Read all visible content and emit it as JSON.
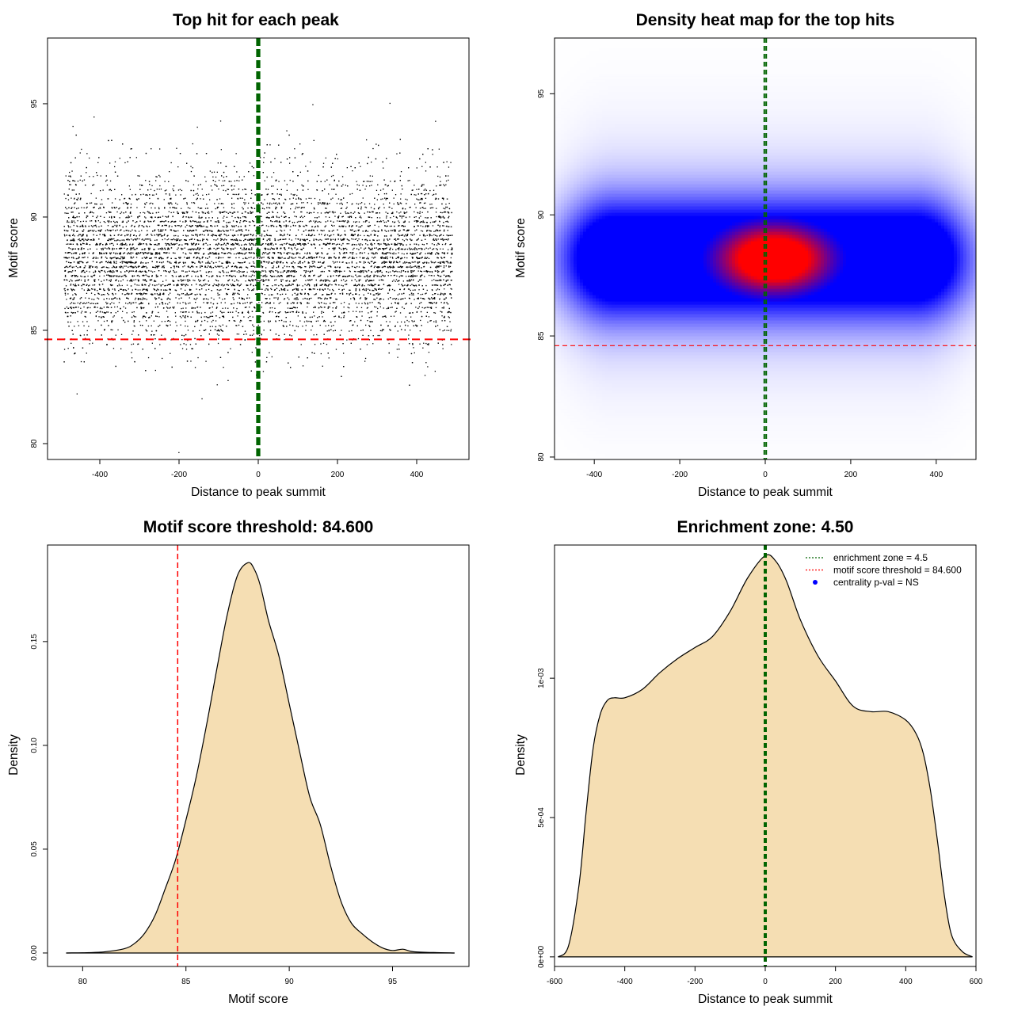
{
  "chart_data": [
    {
      "id": "scatter",
      "type": "scatter",
      "title": "Top hit for each peak",
      "xlabel": "Distance to peak summit",
      "ylabel": "Motif score",
      "xlim": [
        -532,
        532
      ],
      "ylim": [
        79.3,
        97.9
      ],
      "xticks": [
        "-400",
        "-200",
        "0",
        "200",
        "400"
      ],
      "yticks": [
        "80",
        "85",
        "90",
        "95"
      ],
      "x_range_of_points": [
        -490,
        490
      ],
      "y_center": 88.2,
      "y_spread": 1.8,
      "n_points": 9000,
      "hline_threshold": 84.6,
      "vlines_enrichment": [
        -2.25,
        2.25
      ],
      "colors": {
        "points": "#000000",
        "threshold": "#ff0000",
        "enrichment": "#006400"
      }
    },
    {
      "id": "heatmap",
      "type": "heatmap",
      "title": "Density heat map for the top hits",
      "xlabel": "Distance to peak summit",
      "ylabel": "Motif score",
      "xlim": [
        -493,
        493
      ],
      "ylim": [
        79.9,
        97.3
      ],
      "xticks": [
        "-400",
        "-200",
        "0",
        "200",
        "400"
      ],
      "yticks": [
        "80",
        "85",
        "90",
        "95"
      ],
      "density_peak": {
        "x": 20,
        "y": 88.2
      },
      "hline_threshold": 84.6,
      "vlines_enrichment": [
        -2.25,
        2.25
      ],
      "colors": {
        "low": "#ffffff",
        "mid": "#0000ff",
        "high": "#ff0000",
        "threshold": "#ff0000",
        "enrichment": "#006400"
      }
    },
    {
      "id": "score-density",
      "type": "area",
      "title": "Motif score threshold: 84.600",
      "xlabel": "Motif score",
      "ylabel": "Density",
      "xlim": [
        78.3,
        98.7
      ],
      "ylim": [
        -0.0065,
        0.1965
      ],
      "xticks": [
        "80",
        "85",
        "90",
        "95"
      ],
      "yticks": [
        "0.00",
        "0.05",
        "0.10",
        "0.15"
      ],
      "x": [
        79.2,
        80,
        81,
        82,
        82.5,
        83,
        83.5,
        84,
        84.5,
        85,
        85.5,
        86,
        86.5,
        87,
        87.5,
        88,
        88.3,
        88.6,
        89,
        89.5,
        90,
        90.5,
        91,
        91.5,
        92,
        92.5,
        93,
        93.5,
        94,
        94.5,
        95,
        95.5,
        96,
        97,
        98
      ],
      "y": [
        0,
        0.0001,
        0.0005,
        0.002,
        0.0045,
        0.0095,
        0.018,
        0.031,
        0.045,
        0.064,
        0.085,
        0.11,
        0.137,
        0.163,
        0.182,
        0.188,
        0.185,
        0.177,
        0.16,
        0.143,
        0.12,
        0.097,
        0.075,
        0.062,
        0.042,
        0.025,
        0.0145,
        0.0095,
        0.0055,
        0.0025,
        0.0012,
        0.0018,
        0.0006,
        0.0002,
        0
      ],
      "vline_threshold": 84.6,
      "colors": {
        "fill": "#f5deb3",
        "line": "#000000",
        "threshold": "#ff0000"
      }
    },
    {
      "id": "distance-density",
      "type": "area",
      "title": "Enrichment zone: 4.50",
      "xlabel": "Distance to peak summit",
      "ylabel": "Density",
      "xlim": [
        -600,
        600
      ],
      "ylim": [
        -3.45e-05,
        0.001478
      ],
      "xticks": [
        "-600",
        "-400",
        "-200",
        "0",
        "200",
        "400",
        "600"
      ],
      "yticks": [
        "0e+00",
        "5e-04",
        "1e-03"
      ],
      "x": [
        -590,
        -560,
        -530,
        -510,
        -490,
        -470,
        -450,
        -430,
        -400,
        -350,
        -300,
        -250,
        -200,
        -150,
        -100,
        -50,
        0,
        30,
        60,
        100,
        150,
        200,
        250,
        300,
        350,
        400,
        430,
        450,
        470,
        490,
        510,
        530,
        560,
        590
      ],
      "y": [
        0,
        4e-05,
        0.00026,
        0.00052,
        0.00075,
        0.00087,
        0.00092,
        0.00093,
        0.00093,
        0.00096,
        0.00102,
        0.00107,
        0.00111,
        0.00115,
        0.00124,
        0.00136,
        0.00144,
        0.00142,
        0.00135,
        0.00121,
        0.00108,
        0.00099,
        0.0009,
        0.00088,
        0.00088,
        0.00085,
        0.0008,
        0.00073,
        0.0006,
        0.00042,
        0.00022,
        8e-05,
        2e-05,
        0
      ],
      "vlines_enrichment": [
        -2.25,
        2.25
      ],
      "legend_position": "top-right",
      "legend": [
        {
          "label": "enrichment zone = 4.5",
          "style": "dotted-line",
          "color": "#006400"
        },
        {
          "label": "motif score threshold = 84.600",
          "style": "dotted-line",
          "color": "#ff0000"
        },
        {
          "label": "centrality p-val = NS",
          "style": "point",
          "color": "#0000ff"
        }
      ],
      "colors": {
        "fill": "#f5deb3",
        "line": "#000000",
        "enrichment": "#006400"
      }
    }
  ]
}
